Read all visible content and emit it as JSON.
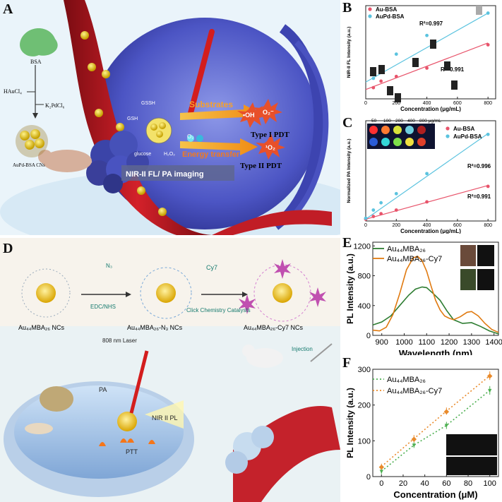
{
  "panels": {
    "A": {
      "label": "A",
      "bsa": "BSA",
      "haucl4": "HAuCl₄",
      "k2pdcl6": "K₂PdCl₆",
      "cns": "AuPd-BSA CNs",
      "gssh": "GSSH",
      "gsh": "GSH",
      "glucose": "glucose",
      "h2o2": "H₂O₂",
      "substrates": "Substrates",
      "energy": "Energy transfer",
      "oh": "•OH",
      "o2rad": "O₂⁻",
      "type1": "Type I PDT",
      "type2": "Type II PDT",
      "singlet": "¹O₂",
      "o2": "O₂",
      "imaging": "NIR-II FL/ PA imaging"
    },
    "D": {
      "label": "D",
      "edc": "EDC/NHS",
      "cy7": "Cy7",
      "n3": "N₃",
      "nc1": "Au₄₄MBA₂₆ NCs",
      "nc2": "Au₄₄MBA₂₆-N₃ NCs",
      "nc3": "Au₄₄MBA₂₆-Cy7 NCs",
      "click": "Click Chemistry Catalysts",
      "laser": "808 nm Laser",
      "pa": "PA",
      "nir": "NIR II PL",
      "ptt": "PTT",
      "injection": "Injection"
    },
    "B": {
      "label": "B"
    },
    "C": {
      "label": "C"
    },
    "E": {
      "label": "E"
    },
    "F": {
      "label": "F"
    }
  },
  "chart_data": [
    {
      "id": "B",
      "type": "scatter",
      "xlabel": "Concentration (μg/mL)",
      "ylabel": "NIR-II FL Intensity (a.u.)",
      "xlim": [
        0,
        850
      ],
      "ylim": [
        0,
        100
      ],
      "xticks": [
        0,
        200,
        400,
        600,
        800
      ],
      "tick_labels": [
        "0",
        "200",
        "400",
        "600",
        "800"
      ],
      "series": [
        {
          "name": "Au-BSA",
          "color": "#e8546b",
          "x": [
            50,
            100,
            200,
            400,
            800
          ],
          "y": [
            12,
            19,
            24,
            33,
            58
          ],
          "fit": [
            [
              0,
              10
            ],
            [
              800,
              60
            ]
          ],
          "r2": "R²=0.991"
        },
        {
          "name": "AuPd-BSA",
          "color": "#5bc3df",
          "x": [
            50,
            100,
            200,
            400,
            800
          ],
          "y": [
            22,
            32,
            48,
            68,
            92
          ],
          "fit": [
            [
              0,
              18
            ],
            [
              800,
              92
            ]
          ],
          "r2": "R²=0.997"
        }
      ]
    },
    {
      "id": "C",
      "type": "scatter",
      "xlabel": "Concentration (μg/mL)",
      "ylabel": "Normalized PA Intensity (a.u.)",
      "xlim": [
        0,
        850
      ],
      "ylim": [
        0,
        1.1
      ],
      "xticks": [
        0,
        200,
        400,
        600,
        800
      ],
      "tick_labels": [
        "0",
        "200",
        "400",
        "600",
        "800"
      ],
      "inset_labels": [
        "50",
        "100",
        "200",
        "400",
        "800 μg/mL"
      ],
      "series": [
        {
          "name": "Au-BSA",
          "color": "#e8546b",
          "x": [
            0,
            50,
            100,
            200,
            400,
            800
          ],
          "y": [
            0.02,
            0.05,
            0.08,
            0.12,
            0.21,
            0.38
          ],
          "fit": [
            [
              0,
              0.02
            ],
            [
              800,
              0.39
            ]
          ],
          "r2": "R²=0.991"
        },
        {
          "name": "AuPd-BSA",
          "color": "#5bc3df",
          "x": [
            0,
            50,
            100,
            200,
            400,
            800
          ],
          "y": [
            0.03,
            0.12,
            0.2,
            0.3,
            0.52,
            0.95
          ],
          "fit": [
            [
              0,
              0.02
            ],
            [
              800,
              0.96
            ]
          ],
          "r2": "R²=0.996"
        }
      ]
    },
    {
      "id": "E",
      "type": "line",
      "xlabel": "Wavelength (nm)",
      "ylabel": "PL Intensity (a.u.)",
      "xlim": [
        860,
        1420
      ],
      "ylim": [
        0,
        1250
      ],
      "xticks": [
        900,
        1000,
        1100,
        1200,
        1300,
        1400
      ],
      "yticks": [
        0,
        400,
        800,
        1200
      ],
      "series": [
        {
          "name": "Au₄₄MBA₂₆",
          "color": "#2e7d32",
          "x": [
            860,
            900,
            940,
            980,
            1020,
            1050,
            1080,
            1100,
            1130,
            1160,
            1190,
            1220,
            1260,
            1300,
            1340,
            1380,
            1420
          ],
          "y": [
            140,
            180,
            260,
            400,
            540,
            620,
            650,
            640,
            560,
            470,
            330,
            210,
            160,
            170,
            120,
            60,
            20
          ]
        },
        {
          "name": "Au₄₄MBA₂₆-Cy7",
          "color": "#e07a10",
          "x": [
            860,
            890,
            920,
            950,
            980,
            1010,
            1040,
            1060,
            1080,
            1100,
            1120,
            1140,
            1160,
            1180,
            1200,
            1220,
            1250,
            1280,
            1300,
            1330,
            1360,
            1390,
            1420
          ],
          "y": [
            70,
            60,
            110,
            280,
            560,
            880,
            1040,
            1060,
            1000,
            860,
            660,
            470,
            340,
            260,
            230,
            210,
            250,
            310,
            320,
            260,
            160,
            80,
            40
          ]
        }
      ]
    },
    {
      "id": "F",
      "type": "scatter",
      "xlabel": "Concentration (μM)",
      "ylabel": "PL Intensity (a.u.)",
      "xlim": [
        -8,
        108
      ],
      "ylim": [
        0,
        300
      ],
      "xticks": [
        0,
        20,
        40,
        60,
        80,
        100
      ],
      "yticks": [
        0,
        100,
        200,
        300
      ],
      "series": [
        {
          "name": "Au₄₄MBA₂₆",
          "color": "#4caf50",
          "x": [
            0,
            30,
            60,
            100
          ],
          "y": [
            15,
            88,
            143,
            241
          ],
          "err": [
            8,
            8,
            10,
            12
          ]
        },
        {
          "name": "Au₄₄MBA₂₆-Cy7",
          "color": "#e98a2a",
          "x": [
            0,
            30,
            60,
            100
          ],
          "y": [
            28,
            106,
            183,
            282
          ],
          "err": [
            8,
            10,
            10,
            12
          ]
        }
      ]
    }
  ]
}
